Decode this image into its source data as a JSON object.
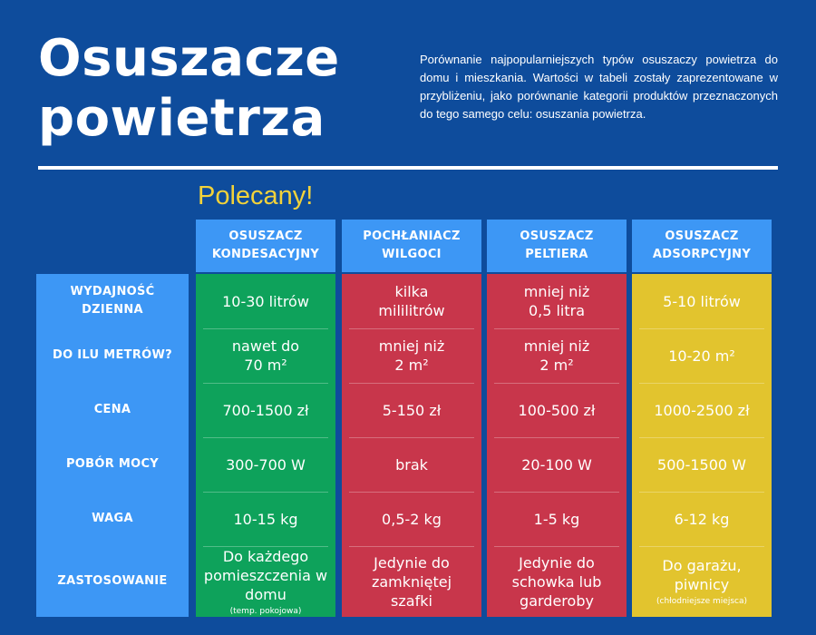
{
  "header": {
    "title_line1": "Osuszacze",
    "title_line2": "powietrza",
    "intro": "Porównanie najpopularniejszych typów osuszaczy powietrza do domu i mieszkania. Wartości w tabeli zostały zaprezentowane w przybliżeniu, jako porównanie kategorii produktów przeznaczonych do tego samego celu: osuszania powietrza.",
    "recommended_label": "Polecany!"
  },
  "colors": {
    "background": "#0e4c9c",
    "header_blue": "#3d97f5",
    "green": "#0ea25b",
    "red": "#c8364b",
    "yellow": "#e2c42e",
    "recommended_text": "#f2d23a"
  },
  "rows": [
    {
      "line1": "WYDAJNOŚĆ",
      "line2": "DZIENNA"
    },
    {
      "line1": "DO ILU METRÓW?",
      "line2": ""
    },
    {
      "line1": "CENA",
      "line2": ""
    },
    {
      "line1": "POBÓR MOCY",
      "line2": ""
    },
    {
      "line1": "WAGA",
      "line2": ""
    },
    {
      "line1": "ZASTOSOWANIE",
      "line2": ""
    }
  ],
  "columns": [
    {
      "head1": "OSUSZACZ",
      "head2": "KONDESACYJNY",
      "color": "green",
      "cells": [
        {
          "lines": [
            "10-30 litrów"
          ],
          "note": ""
        },
        {
          "lines": [
            "nawet do",
            "70 m²"
          ],
          "note": ""
        },
        {
          "lines": [
            "700-1500 zł"
          ],
          "note": ""
        },
        {
          "lines": [
            "300-700 W"
          ],
          "note": ""
        },
        {
          "lines": [
            "10-15 kg"
          ],
          "note": ""
        },
        {
          "lines": [
            "Do każdego",
            "pomieszczenia w",
            "domu"
          ],
          "note": "(temp. pokojowa)"
        }
      ]
    },
    {
      "head1": "POCHŁANIACZ",
      "head2": "WILGOCI",
      "color": "red",
      "cells": [
        {
          "lines": [
            "kilka",
            "mililitrów"
          ],
          "note": ""
        },
        {
          "lines": [
            "mniej niż",
            "2 m²"
          ],
          "note": ""
        },
        {
          "lines": [
            "5-150 zł"
          ],
          "note": ""
        },
        {
          "lines": [
            "brak"
          ],
          "note": ""
        },
        {
          "lines": [
            "0,5-2 kg"
          ],
          "note": ""
        },
        {
          "lines": [
            "Jedynie do",
            "zamkniętej",
            "szafki"
          ],
          "note": ""
        }
      ]
    },
    {
      "head1": "OSUSZACZ",
      "head2": "PELTIERA",
      "color": "red",
      "cells": [
        {
          "lines": [
            "mniej niż",
            "0,5 litra"
          ],
          "note": ""
        },
        {
          "lines": [
            "mniej niż",
            "2 m²"
          ],
          "note": ""
        },
        {
          "lines": [
            "100-500 zł"
          ],
          "note": ""
        },
        {
          "lines": [
            "20-100 W"
          ],
          "note": ""
        },
        {
          "lines": [
            "1-5 kg"
          ],
          "note": ""
        },
        {
          "lines": [
            "Jedynie do",
            "schowka lub",
            "garderoby"
          ],
          "note": ""
        }
      ]
    },
    {
      "head1": "OSUSZACZ",
      "head2": "ADSORPCYJNY",
      "color": "yellow",
      "cells": [
        {
          "lines": [
            "5-10 litrów"
          ],
          "note": ""
        },
        {
          "lines": [
            "10-20 m²"
          ],
          "note": ""
        },
        {
          "lines": [
            "1000-2500 zł"
          ],
          "note": ""
        },
        {
          "lines": [
            "500-1500 W"
          ],
          "note": ""
        },
        {
          "lines": [
            "6-12 kg"
          ],
          "note": ""
        },
        {
          "lines": [
            "Do garażu,",
            "piwnicy"
          ],
          "note": "(chłodniejsze miejsca)"
        }
      ]
    }
  ]
}
